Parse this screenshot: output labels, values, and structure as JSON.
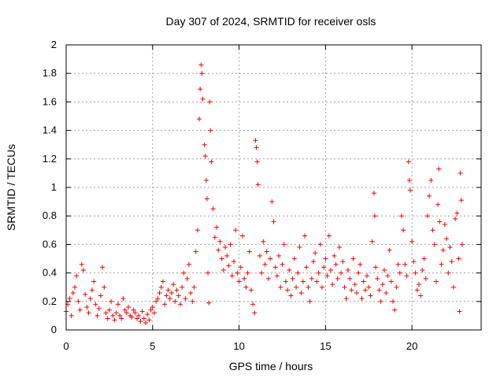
{
  "chart_data": {
    "type": "scatter",
    "title": "Day 307 of 2024, SRMTID for receiver osls",
    "xlabel": "GPS time / hours",
    "ylabel": "SRMTID / TECUs",
    "xlim": [
      0,
      24
    ],
    "ylim": [
      0,
      2
    ],
    "x_ticks": [
      0,
      5,
      10,
      15,
      20
    ],
    "x_tick_labels": [
      "0",
      "5",
      "10",
      "15",
      "20"
    ],
    "y_ticks": [
      0,
      0.2,
      0.4,
      0.6,
      0.8,
      1,
      1.2,
      1.4,
      1.6,
      1.8,
      2
    ],
    "y_tick_labels": [
      "0",
      "0.2",
      "0.4",
      "0.6",
      "0.8",
      "1",
      "1.2",
      "1.4",
      "1.6",
      "1.8",
      "2"
    ],
    "grid": true,
    "marker": "+",
    "color": "#ff0000",
    "series": [
      {
        "name": "osls",
        "points": [
          [
            0.0,
            0.13
          ],
          [
            0.1,
            0.18
          ],
          [
            0.2,
            0.22
          ],
          [
            0.3,
            0.1
          ],
          [
            0.4,
            0.26
          ],
          [
            0.5,
            0.3
          ],
          [
            0.6,
            0.38
          ],
          [
            0.7,
            0.2
          ],
          [
            0.8,
            0.14
          ],
          [
            0.9,
            0.46
          ],
          [
            1.0,
            0.42
          ],
          [
            1.1,
            0.25
          ],
          [
            1.2,
            0.16
          ],
          [
            1.3,
            0.12
          ],
          [
            1.4,
            0.22
          ],
          [
            1.5,
            0.28
          ],
          [
            1.6,
            0.34
          ],
          [
            1.7,
            0.18
          ],
          [
            1.8,
            0.1
          ],
          [
            1.9,
            0.15
          ],
          [
            2.0,
            0.24
          ],
          [
            2.1,
            0.44
          ],
          [
            2.2,
            0.3
          ],
          [
            2.3,
            0.12
          ],
          [
            2.4,
            0.08
          ],
          [
            2.5,
            0.14
          ],
          [
            2.6,
            0.2
          ],
          [
            2.7,
            0.1
          ],
          [
            2.8,
            0.07
          ],
          [
            2.9,
            0.12
          ],
          [
            3.0,
            0.18
          ],
          [
            3.1,
            0.1
          ],
          [
            3.2,
            0.08
          ],
          [
            3.3,
            0.22
          ],
          [
            3.4,
            0.14
          ],
          [
            3.5,
            0.12
          ],
          [
            3.6,
            0.16
          ],
          [
            3.7,
            0.1
          ],
          [
            3.8,
            0.09
          ],
          [
            3.9,
            0.14
          ],
          [
            4.0,
            0.12
          ],
          [
            4.1,
            0.08
          ],
          [
            4.2,
            0.1
          ],
          [
            4.3,
            0.06
          ],
          [
            4.4,
            0.13
          ],
          [
            4.5,
            0.08
          ],
          [
            4.6,
            0.05
          ],
          [
            4.7,
            0.11
          ],
          [
            4.8,
            0.07
          ],
          [
            4.9,
            0.14
          ],
          [
            5.0,
            0.16
          ],
          [
            5.1,
            0.12
          ],
          [
            5.2,
            0.2
          ],
          [
            5.3,
            0.22
          ],
          [
            5.4,
            0.26
          ],
          [
            5.5,
            0.3
          ],
          [
            5.6,
            0.34
          ],
          [
            5.7,
            0.18
          ],
          [
            5.8,
            0.24
          ],
          [
            5.9,
            0.28
          ],
          [
            6.0,
            0.22
          ],
          [
            6.1,
            0.26
          ],
          [
            6.2,
            0.32
          ],
          [
            6.3,
            0.2
          ],
          [
            6.4,
            0.28
          ],
          [
            6.5,
            0.24
          ],
          [
            6.6,
            0.18
          ],
          [
            6.7,
            0.3
          ],
          [
            6.8,
            0.4
          ],
          [
            6.9,
            0.22
          ],
          [
            7.0,
            0.36
          ],
          [
            7.1,
            0.46
          ],
          [
            7.2,
            0.26
          ],
          [
            7.3,
            0.2
          ],
          [
            7.4,
            0.3
          ],
          [
            7.5,
            0.55
          ],
          [
            7.6,
            0.7
          ],
          [
            7.7,
            1.48
          ],
          [
            7.75,
            1.69
          ],
          [
            7.8,
            1.86
          ],
          [
            7.85,
            1.8
          ],
          [
            7.9,
            1.62
          ],
          [
            8.0,
            1.3
          ],
          [
            8.05,
            1.22
          ],
          [
            8.1,
            1.05
          ],
          [
            8.15,
            0.92
          ],
          [
            8.2,
            0.4
          ],
          [
            8.25,
            0.19
          ],
          [
            8.3,
            1.6
          ],
          [
            8.35,
            1.4
          ],
          [
            8.4,
            1.18
          ],
          [
            8.5,
            0.85
          ],
          [
            8.6,
            0.65
          ],
          [
            8.7,
            0.72
          ],
          [
            8.8,
            0.56
          ],
          [
            8.9,
            0.62
          ],
          [
            9.0,
            0.5
          ],
          [
            9.1,
            0.42
          ],
          [
            9.2,
            0.58
          ],
          [
            9.3,
            0.52
          ],
          [
            9.4,
            0.45
          ],
          [
            9.5,
            0.6
          ],
          [
            9.6,
            0.38
          ],
          [
            9.7,
            0.48
          ],
          [
            9.8,
            0.7
          ],
          [
            9.9,
            0.4
          ],
          [
            10.0,
            0.34
          ],
          [
            10.1,
            0.44
          ],
          [
            10.2,
            0.66
          ],
          [
            10.3,
            0.36
          ],
          [
            10.4,
            0.3
          ],
          [
            10.5,
            0.4
          ],
          [
            10.6,
            0.55
          ],
          [
            10.7,
            0.28
          ],
          [
            10.8,
            0.18
          ],
          [
            10.9,
            0.12
          ],
          [
            10.95,
            1.33
          ],
          [
            11.0,
            1.28
          ],
          [
            11.05,
            1.18
          ],
          [
            11.1,
            1.02
          ],
          [
            11.2,
            0.52
          ],
          [
            11.3,
            0.4
          ],
          [
            11.4,
            0.62
          ],
          [
            11.5,
            0.46
          ],
          [
            11.6,
            0.55
          ],
          [
            11.7,
            0.36
          ],
          [
            11.8,
            0.5
          ],
          [
            11.9,
            0.9
          ],
          [
            12.0,
            0.76
          ],
          [
            12.1,
            0.44
          ],
          [
            12.2,
            0.38
          ],
          [
            12.3,
            0.52
          ],
          [
            12.4,
            0.3
          ],
          [
            12.5,
            0.46
          ],
          [
            12.6,
            0.6
          ],
          [
            12.7,
            0.34
          ],
          [
            12.8,
            0.28
          ],
          [
            12.9,
            0.42
          ],
          [
            13.0,
            0.24
          ],
          [
            13.1,
            0.36
          ],
          [
            13.2,
            0.5
          ],
          [
            13.3,
            0.3
          ],
          [
            13.4,
            0.4
          ],
          [
            13.5,
            0.58
          ],
          [
            13.6,
            0.26
          ],
          [
            13.7,
            0.34
          ],
          [
            13.8,
            0.66
          ],
          [
            13.9,
            0.44
          ],
          [
            14.0,
            0.3
          ],
          [
            14.1,
            0.2
          ],
          [
            14.2,
            0.36
          ],
          [
            14.3,
            0.48
          ],
          [
            14.4,
            0.54
          ],
          [
            14.5,
            0.34
          ],
          [
            14.6,
            0.4
          ],
          [
            14.7,
            0.6
          ],
          [
            14.8,
            0.3
          ],
          [
            14.9,
            0.44
          ],
          [
            15.0,
            0.5
          ],
          [
            15.1,
            0.38
          ],
          [
            15.2,
            0.66
          ],
          [
            15.3,
            0.42
          ],
          [
            15.4,
            0.32
          ],
          [
            15.5,
            0.52
          ],
          [
            15.6,
            0.46
          ],
          [
            15.7,
            0.36
          ],
          [
            15.8,
            0.58
          ],
          [
            15.9,
            0.4
          ],
          [
            16.0,
            0.48
          ],
          [
            16.1,
            0.3
          ],
          [
            16.2,
            0.22
          ],
          [
            16.3,
            0.42
          ],
          [
            16.4,
            0.36
          ],
          [
            16.5,
            0.28
          ],
          [
            16.6,
            0.5
          ],
          [
            16.7,
            0.32
          ],
          [
            16.8,
            0.26
          ],
          [
            16.9,
            0.4
          ],
          [
            17.0,
            0.46
          ],
          [
            17.1,
            0.22
          ],
          [
            17.2,
            0.34
          ],
          [
            17.3,
            0.28
          ],
          [
            17.4,
            0.38
          ],
          [
            17.5,
            0.3
          ],
          [
            17.6,
            0.24
          ],
          [
            17.7,
            0.62
          ],
          [
            17.8,
            0.96
          ],
          [
            17.85,
            0.8
          ],
          [
            17.9,
            0.44
          ],
          [
            18.0,
            0.36
          ],
          [
            18.1,
            0.28
          ],
          [
            18.2,
            0.2
          ],
          [
            18.3,
            0.32
          ],
          [
            18.4,
            0.42
          ],
          [
            18.5,
            0.26
          ],
          [
            18.6,
            0.38
          ],
          [
            18.7,
            0.56
          ],
          [
            18.8,
            0.34
          ],
          [
            18.9,
            0.2
          ],
          [
            19.0,
            0.14
          ],
          [
            19.1,
            0.3
          ],
          [
            19.2,
            0.46
          ],
          [
            19.3,
            0.4
          ],
          [
            19.4,
            0.8
          ],
          [
            19.5,
            0.7
          ],
          [
            19.6,
            0.46
          ],
          [
            19.7,
            0.38
          ],
          [
            19.8,
            1.18
          ],
          [
            19.85,
            1.05
          ],
          [
            19.9,
            0.98
          ],
          [
            20.0,
            0.62
          ],
          [
            20.1,
            0.48
          ],
          [
            20.2,
            0.4
          ],
          [
            20.3,
            0.28
          ],
          [
            20.4,
            0.32
          ],
          [
            20.5,
            0.24
          ],
          [
            20.6,
            0.42
          ],
          [
            20.7,
            0.5
          ],
          [
            20.8,
            0.36
          ],
          [
            20.9,
            0.8
          ],
          [
            21.0,
            0.94
          ],
          [
            21.1,
            1.05
          ],
          [
            21.2,
            0.7
          ],
          [
            21.3,
            0.6
          ],
          [
            21.4,
            0.34
          ],
          [
            21.5,
            0.88
          ],
          [
            21.55,
            1.13
          ],
          [
            21.6,
            0.76
          ],
          [
            21.7,
            0.46
          ],
          [
            21.8,
            0.56
          ],
          [
            21.9,
            0.74
          ],
          [
            22.0,
            0.64
          ],
          [
            22.1,
            0.4
          ],
          [
            22.2,
            0.58
          ],
          [
            22.3,
            0.48
          ],
          [
            22.4,
            0.3
          ],
          [
            22.5,
            0.78
          ],
          [
            22.6,
            0.82
          ],
          [
            22.7,
            0.5
          ],
          [
            22.75,
            0.13
          ],
          [
            22.8,
            1.1
          ],
          [
            22.85,
            0.91
          ],
          [
            22.9,
            0.6
          ]
        ]
      }
    ]
  }
}
